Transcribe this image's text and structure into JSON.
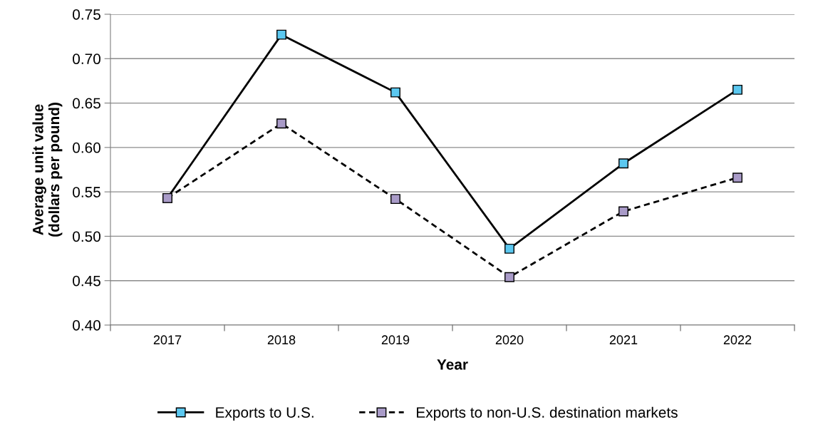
{
  "chart_data": {
    "type": "line",
    "xlabel": "Year",
    "ylabel": "Average unit value\n(dollars per pound)",
    "categories": [
      "2017",
      "2018",
      "2019",
      "2020",
      "2021",
      "2022"
    ],
    "series": [
      {
        "name": "Exports to U.S.",
        "color": "#5bc8f0",
        "line_style": "solid",
        "values": [
          0.543,
          0.727,
          0.662,
          0.486,
          0.582,
          0.665
        ]
      },
      {
        "name": "Exports to non-U.S. destination markets",
        "color": "#a99bc8",
        "line_style": "dashed",
        "values": [
          0.543,
          0.627,
          0.542,
          0.454,
          0.528,
          0.566
        ]
      }
    ],
    "ylim": [
      0.4,
      0.75
    ],
    "yticks": [
      {
        "value": 0.4,
        "label": "0.40"
      },
      {
        "value": 0.45,
        "label": "0.45"
      },
      {
        "value": 0.5,
        "label": "0.50"
      },
      {
        "value": 0.55,
        "label": "0.55"
      },
      {
        "value": 0.6,
        "label": "0.60"
      },
      {
        "value": 0.65,
        "label": "0.65"
      },
      {
        "value": 0.7,
        "label": "0.70"
      },
      {
        "value": 0.75,
        "label": "0.75"
      }
    ],
    "grid": "y",
    "legend": "bottom",
    "marker": "square"
  }
}
